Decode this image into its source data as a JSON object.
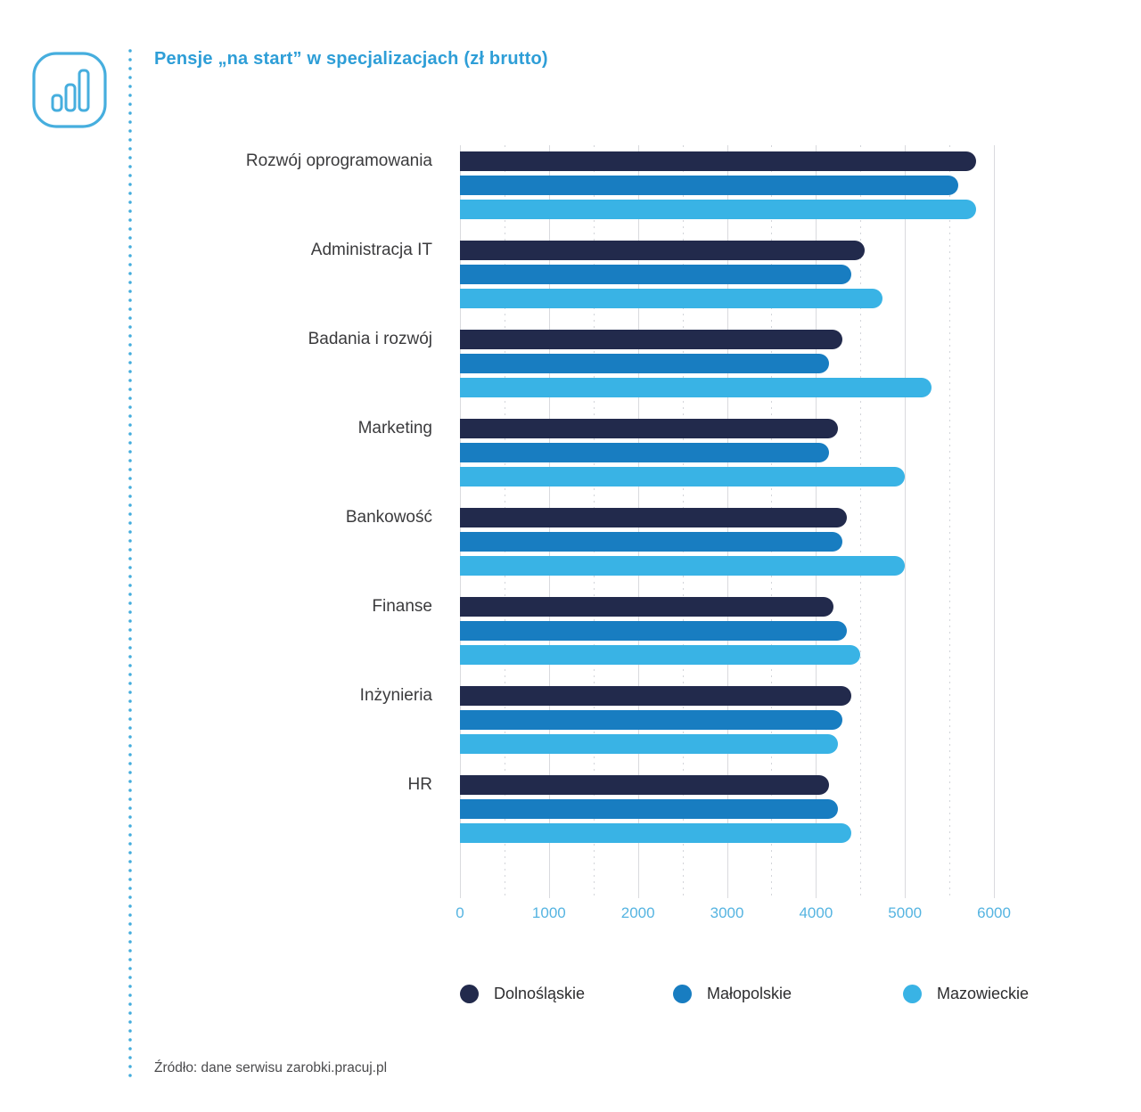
{
  "header": {
    "title": "Pensje „na start” w specjalizacjach (zł brutto)",
    "icon": "bar-chart-icon",
    "accent_color": "#2e9ed7"
  },
  "chart_data": {
    "type": "bar",
    "orientation": "horizontal",
    "title": "Pensje „na start” w specjalizacjach (zł brutto)",
    "categories": [
      "Rozwój oprogramowania",
      "Administracja IT",
      "Badania i rozwój",
      "Marketing",
      "Bankowość",
      "Finanse",
      "Inżynieria",
      "HR"
    ],
    "series": [
      {
        "name": "Dolnośląskie",
        "color": "#222a4c",
        "values": [
          5800,
          4550,
          4300,
          4250,
          4350,
          4200,
          4400,
          4150
        ]
      },
      {
        "name": "Małopolskie",
        "color": "#187dc1",
        "values": [
          5600,
          4400,
          4150,
          4150,
          4300,
          4350,
          4300,
          4250
        ]
      },
      {
        "name": "Mazowieckie",
        "color": "#39b3e5",
        "values": [
          5800,
          4750,
          5300,
          5000,
          5000,
          4500,
          4250,
          4400
        ]
      }
    ],
    "xlabel": "",
    "ylabel": "",
    "xlim": [
      0,
      6450
    ],
    "x_ticks": [
      0,
      1000,
      2000,
      3000,
      4000,
      5000,
      6000
    ],
    "minor_tick_step": 500,
    "grid": "vertical: major solid, minor dotted",
    "legend_position": "bottom",
    "tick_label_color": "#55b4e1"
  },
  "footer": {
    "source": "Źródło: dane serwisu zarobki.pracuj.pl"
  }
}
